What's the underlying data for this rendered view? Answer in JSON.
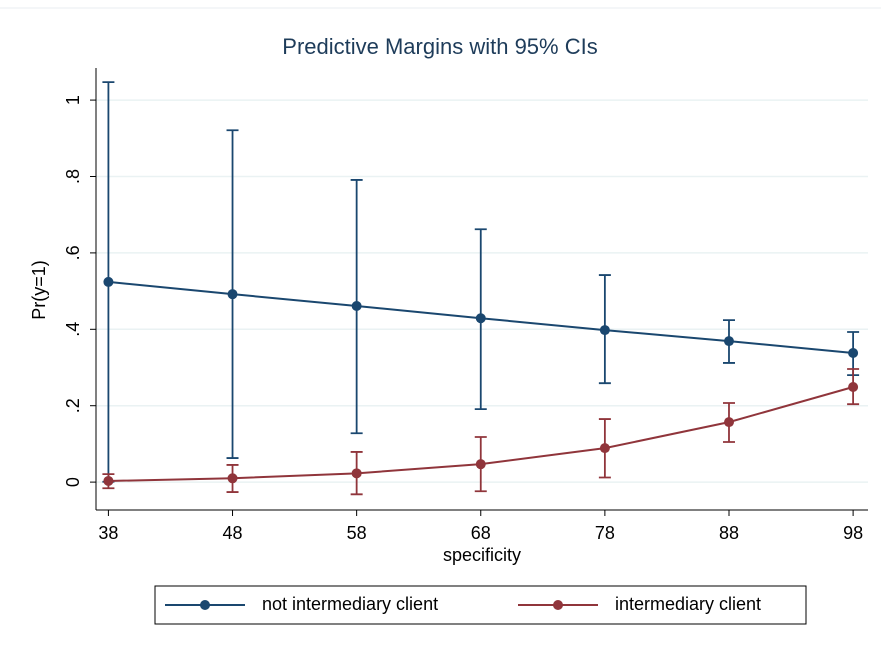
{
  "chart_data": {
    "type": "line",
    "title": "Predictive Margins with 95% CIs",
    "x_label": "specificity",
    "y_label": "Pr(y=1)",
    "x": [
      38,
      48,
      58,
      68,
      78,
      88,
      98
    ],
    "xlim": [
      37,
      99.2
    ],
    "xticks": [
      38,
      48,
      58,
      68,
      78,
      88,
      98
    ],
    "ylim": [
      -0.073,
      1.084
    ],
    "yticks": [
      0,
      {
        "value": 0.2,
        "label": ".2"
      },
      {
        "value": 0.4,
        "label": ".4"
      },
      {
        "value": 0.6,
        "label": ".6"
      },
      {
        "value": 0.8,
        "label": ".8"
      },
      1
    ],
    "grid": true,
    "legend": "bottom",
    "series": [
      {
        "name": "not intermediary client",
        "color": "#1a476f",
        "values": [
          0.524,
          0.492,
          0.461,
          0.429,
          0.398,
          0.369,
          0.338
        ],
        "ci_lower": [
          0.001,
          0.063,
          0.128,
          0.191,
          0.259,
          0.312,
          0.28
        ],
        "ci_upper": [
          1.047,
          0.921,
          0.791,
          0.662,
          0.542,
          0.424,
          0.393
        ]
      },
      {
        "name": "intermediary client",
        "color": "#90353b",
        "values": [
          0.003,
          0.01,
          0.023,
          0.047,
          0.089,
          0.157,
          0.249
        ],
        "ci_lower": [
          -0.016,
          -0.026,
          -0.032,
          -0.024,
          0.012,
          0.105,
          0.204
        ],
        "ci_upper": [
          0.021,
          0.045,
          0.079,
          0.118,
          0.165,
          0.207,
          0.296
        ]
      }
    ]
  }
}
